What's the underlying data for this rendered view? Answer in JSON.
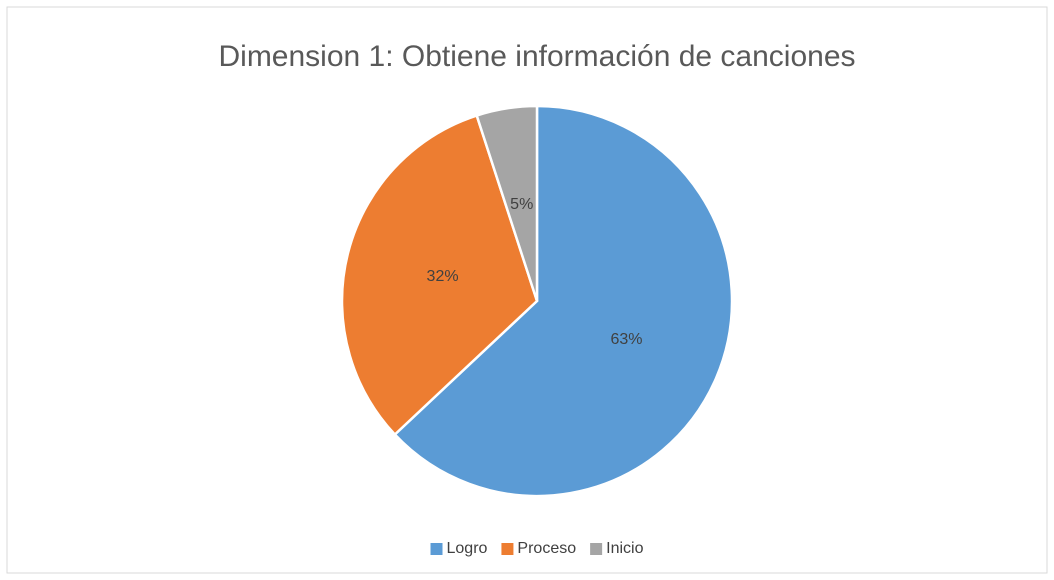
{
  "chart_data": {
    "type": "pie",
    "title": "Dimension 1:  Obtiene información de canciones",
    "categories": [
      "Logro",
      "Proceso",
      "Inicio"
    ],
    "values": [
      63,
      32,
      5
    ],
    "value_labels": [
      "63%",
      "32%",
      "5%"
    ],
    "colors": [
      "#5b9bd5",
      "#ed7d31",
      "#a5a5a5"
    ],
    "legend": "bottom"
  }
}
